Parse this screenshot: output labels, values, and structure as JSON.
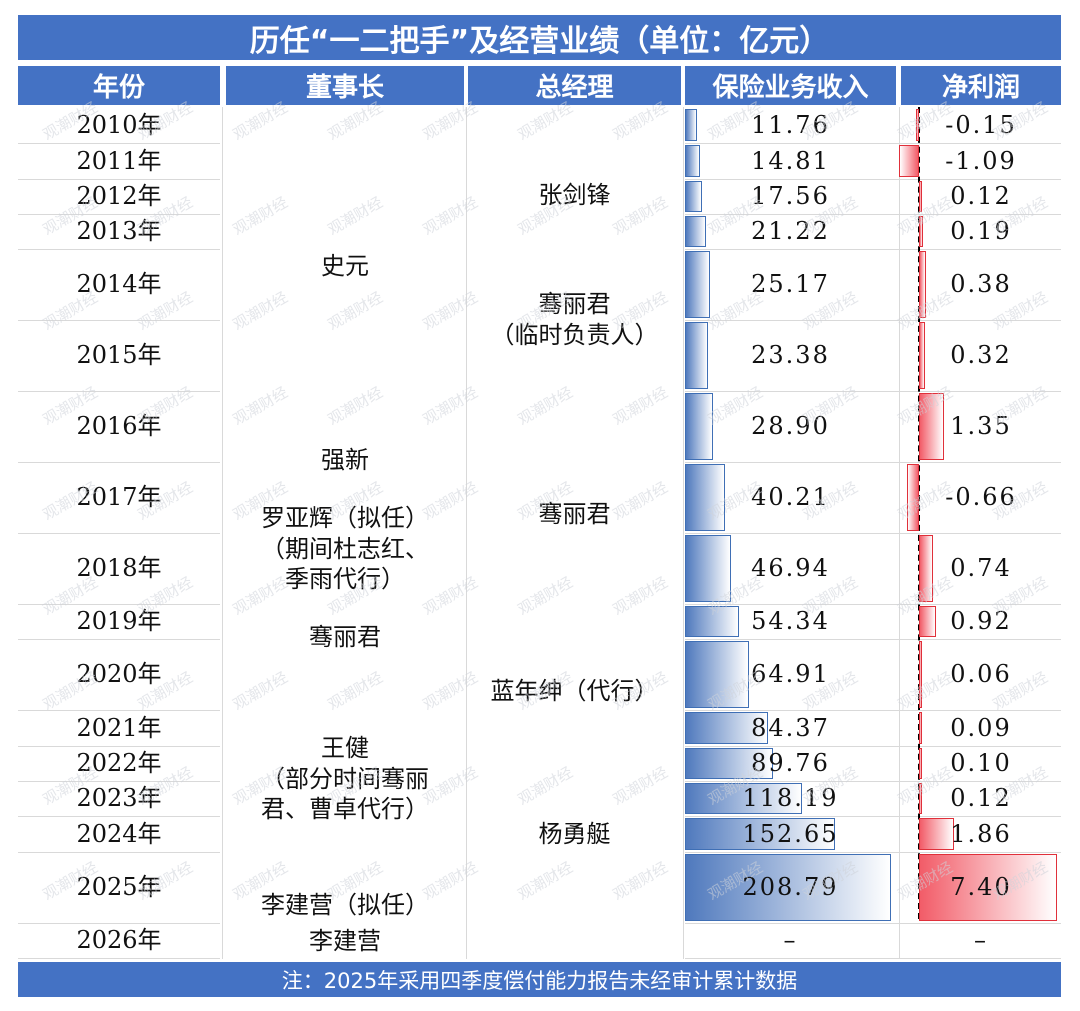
{
  "title": "历任“一二把手”及经营业绩（单位：亿元）",
  "headers": {
    "year": "年份",
    "chairman": "董事长",
    "manager": "总经理",
    "revenue": "保险业务收入",
    "profit": "净利润"
  },
  "footer": "注：2025年采用四季度偿付能力报告未经审计累计数据",
  "watermark": "观潮财经",
  "colors": {
    "header": "#4472C4",
    "revenue_bar": "#4f79bd",
    "profit_bar": "#f25c68"
  },
  "chairmen": [
    {
      "name": "史元"
    },
    {
      "name": "强新"
    },
    {
      "name": "罗亚辉（拟任）（期间杜志红、季雨代行）"
    },
    {
      "name": "骞丽君"
    },
    {
      "name": "王健（部分时间骞丽君、曹卓代行）"
    },
    {
      "name": "李建营（拟任）"
    },
    {
      "name": "李建营"
    }
  ],
  "managers": [
    {
      "name": "张剑锋"
    },
    {
      "name": "骞丽君（临时负责人）"
    },
    {
      "name": "骞丽君"
    },
    {
      "name": "蓝年绅（代行）"
    },
    {
      "name": "杨勇艇"
    }
  ],
  "chart_data": {
    "type": "table",
    "columns": [
      "年份",
      "董事长",
      "总经理",
      "保险业务收入",
      "净利润"
    ],
    "rows": [
      {
        "year": "2010年",
        "revenue": "11.76",
        "profit": "-0.15"
      },
      {
        "year": "2011年",
        "revenue": "14.81",
        "profit": "-1.09"
      },
      {
        "year": "2012年",
        "revenue": "17.56",
        "profit": "0.12"
      },
      {
        "year": "2013年",
        "revenue": "21.22",
        "profit": "0.19"
      },
      {
        "year": "2014年",
        "revenue": "25.17",
        "profit": "0.38"
      },
      {
        "year": "2015年",
        "revenue": "23.38",
        "profit": "0.32"
      },
      {
        "year": "2016年",
        "revenue": "28.90",
        "profit": "1.35"
      },
      {
        "year": "2017年",
        "revenue": "40.21",
        "profit": "-0.66"
      },
      {
        "year": "2018年",
        "revenue": "46.94",
        "profit": "0.74"
      },
      {
        "year": "2019年",
        "revenue": "54.34",
        "profit": "0.92"
      },
      {
        "year": "2020年",
        "revenue": "64.91",
        "profit": "0.06"
      },
      {
        "year": "2021年",
        "revenue": "84.37",
        "profit": "0.09"
      },
      {
        "year": "2022年",
        "revenue": "89.76",
        "profit": "0.10"
      },
      {
        "year": "2023年",
        "revenue": "118.19",
        "profit": "0.12"
      },
      {
        "year": "2024年",
        "revenue": "152.65",
        "profit": "1.86"
      },
      {
        "year": "2025年",
        "revenue": "208.79",
        "profit": "7.40"
      },
      {
        "year": "2026年",
        "revenue": "–",
        "profit": "–"
      }
    ]
  }
}
